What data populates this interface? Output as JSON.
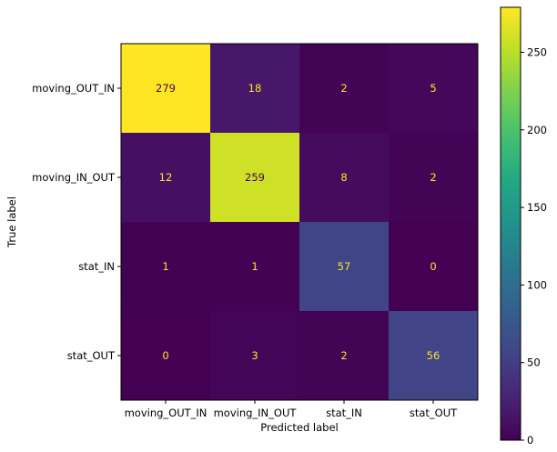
{
  "chart_data": {
    "type": "heatmap",
    "title": "",
    "xlabel": "Predicted label",
    "ylabel": "True label",
    "x_categories": [
      "moving_OUT_IN",
      "moving_IN_OUT",
      "stat_IN",
      "stat_OUT"
    ],
    "y_categories": [
      "moving_OUT_IN",
      "moving_IN_OUT",
      "stat_IN",
      "stat_OUT"
    ],
    "values": [
      [
        279,
        18,
        2,
        5
      ],
      [
        12,
        259,
        8,
        2
      ],
      [
        1,
        1,
        57,
        0
      ],
      [
        0,
        3,
        2,
        56
      ]
    ],
    "colormap": "viridis",
    "vmin": 0,
    "vmax": 279,
    "colorbar_ticks": [
      0,
      50,
      100,
      150,
      200,
      250
    ],
    "text_color_dark_cells": "#fde725",
    "text_color_light_cells": "#440154",
    "grid": false
  }
}
